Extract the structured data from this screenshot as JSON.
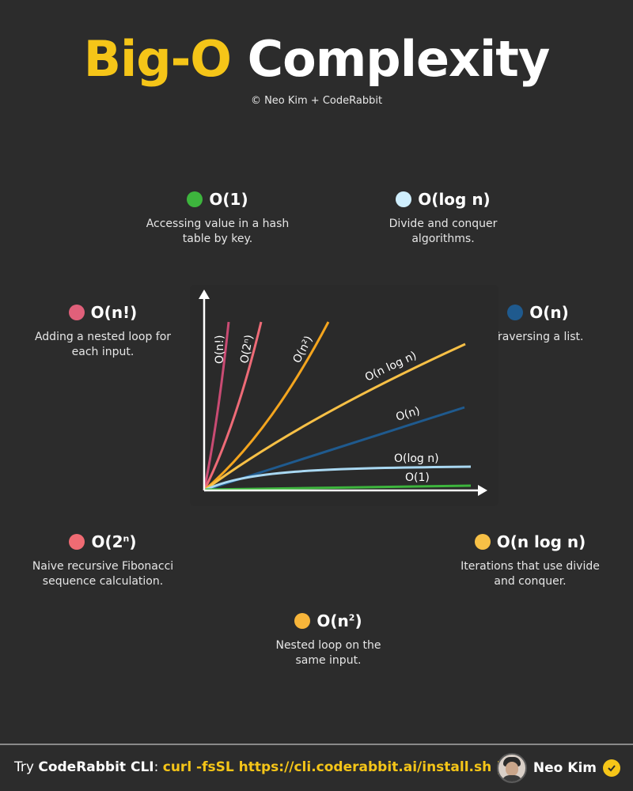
{
  "header": {
    "title_accent": "Big-O",
    "title_rest": "Complexity",
    "credit": "© Neo Kim + CodeRabbit"
  },
  "items": {
    "o1": {
      "label": "O(1)",
      "desc_line1": "Accessing value in a hash",
      "desc_line2": "table by key.",
      "color": "#3db53d"
    },
    "ologn": {
      "label": "O(log n)",
      "desc_line1": "Divide and conquer",
      "desc_line2": "algorithms.",
      "color": "#cfeefd"
    },
    "ofact": {
      "label": "O(n!)",
      "desc_line1": "Adding a nested loop for",
      "desc_line2": "each input.",
      "color": "#e0607a"
    },
    "on": {
      "label": "O(n)",
      "desc_line1": "Traversing a list.",
      "color": "#1f5a8e"
    },
    "o2n": {
      "label_base": "O(2",
      "label_sup": "n",
      "label_end": ")",
      "desc_line1": "Naive recursive Fibonacci",
      "desc_line2": "sequence calculation.",
      "color": "#f06b73"
    },
    "onlogn": {
      "label": "O(n log n)",
      "desc_line1": "Iterations that use divide",
      "desc_line2": "and conquer.",
      "color": "#f7c046"
    },
    "on2": {
      "label_base": "O(n",
      "label_sup": "2",
      "label_end": ")",
      "desc_line1": "Nested loop on the",
      "desc_line2": "same input.",
      "color": "#f7b53a"
    }
  },
  "chart_labels": {
    "fact": "O(n!)",
    "two_n": "O(2ⁿ)",
    "n2": "O(n²)",
    "nlogn": "O(n log n)",
    "n": "O(n)",
    "logn": "O(log n)",
    "one": "O(1)"
  },
  "footer": {
    "try": "Try",
    "product": "CodeRabbit CLI",
    "colon": ":",
    "command": "curl -fsSL https://cli.coderabbit.ai/install.sh | sh",
    "author": "Neo Kim"
  }
}
